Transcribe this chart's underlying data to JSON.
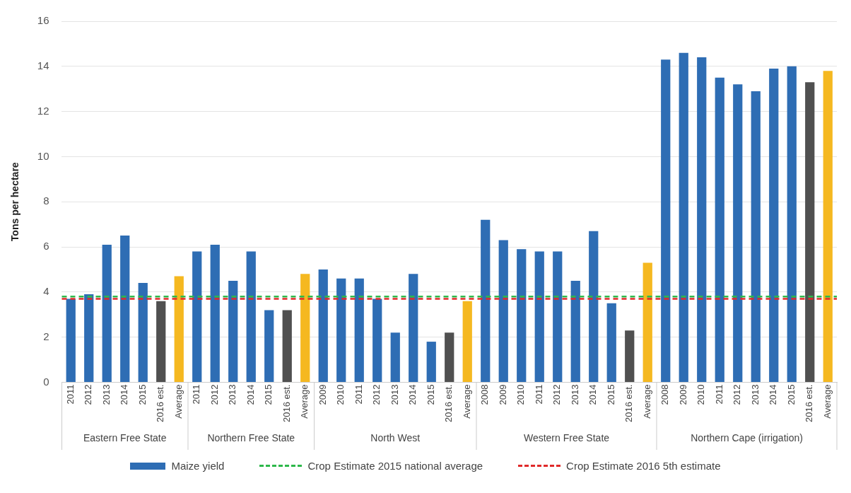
{
  "chart_data": {
    "type": "bar",
    "ylabel": "Tons per hectare",
    "categories": [
      "2011",
      "2012",
      "2013",
      "2014",
      "2015",
      "2016 est.",
      "Average",
      "2011",
      "2012",
      "2013",
      "2014",
      "2015",
      "2016 est.",
      "Average",
      "2009",
      "2010",
      "2011",
      "2012",
      "2013",
      "2014",
      "2015",
      "2016 est.",
      "Average",
      "2008",
      "2009",
      "2010",
      "2011",
      "2012",
      "2013",
      "2014",
      "2015",
      "2016 est.",
      "Average",
      "2008",
      "2009",
      "2010",
      "2011",
      "2012",
      "2013",
      "2014",
      "2015",
      "2016 est.",
      "Average"
    ],
    "series": [
      {
        "name": "Maize yield",
        "color": "#2e6db4",
        "values": [
          3.7,
          3.9,
          6.1,
          6.5,
          4.4,
          3.6,
          4.7,
          5.8,
          6.1,
          4.5,
          5.8,
          3.2,
          3.2,
          4.8,
          5.0,
          4.6,
          4.6,
          3.7,
          2.2,
          4.8,
          1.8,
          2.2,
          3.6,
          7.2,
          6.3,
          5.9,
          5.8,
          5.8,
          4.5,
          6.7,
          3.5,
          2.3,
          5.3,
          14.3,
          14.6,
          14.4,
          13.5,
          13.2,
          12.9,
          13.9,
          14.0,
          13.3,
          13.8
        ],
        "colors": [
          "#2e6db4",
          "#2e6db4",
          "#2e6db4",
          "#2e6db4",
          "#2e6db4",
          "#505050",
          "#f5b820",
          "#2e6db4",
          "#2e6db4",
          "#2e6db4",
          "#2e6db4",
          "#2e6db4",
          "#505050",
          "#f5b820",
          "#2e6db4",
          "#2e6db4",
          "#2e6db4",
          "#2e6db4",
          "#2e6db4",
          "#2e6db4",
          "#2e6db4",
          "#505050",
          "#f5b820",
          "#2e6db4",
          "#2e6db4",
          "#2e6db4",
          "#2e6db4",
          "#2e6db4",
          "#2e6db4",
          "#2e6db4",
          "#2e6db4",
          "#505050",
          "#f5b820",
          "#2e6db4",
          "#2e6db4",
          "#2e6db4",
          "#2e6db4",
          "#2e6db4",
          "#2e6db4",
          "#2e6db4",
          "#2e6db4",
          "#505050",
          "#f5b820"
        ]
      }
    ],
    "annotations": [
      "Eastern Free State",
      "Northern Free State",
      "North West",
      "Western Free State",
      "Northern Cape (irrigation)"
    ],
    "ref_lines": [
      {
        "axis": "y",
        "value": 3.8,
        "label": "Crop Estimate 2015 national average",
        "color": "#2db84a",
        "line_style": "dashed"
      },
      {
        "axis": "y",
        "value": 3.7,
        "label": "Crop Estimate 2016 5th estimate",
        "color": "#e02a2a",
        "line_style": "dashed"
      }
    ],
    "ylim": [
      0,
      16
    ],
    "yticks": [
      0,
      2,
      4,
      6,
      8,
      10,
      12,
      14,
      16
    ],
    "grid": "y",
    "legend": "bottom"
  }
}
